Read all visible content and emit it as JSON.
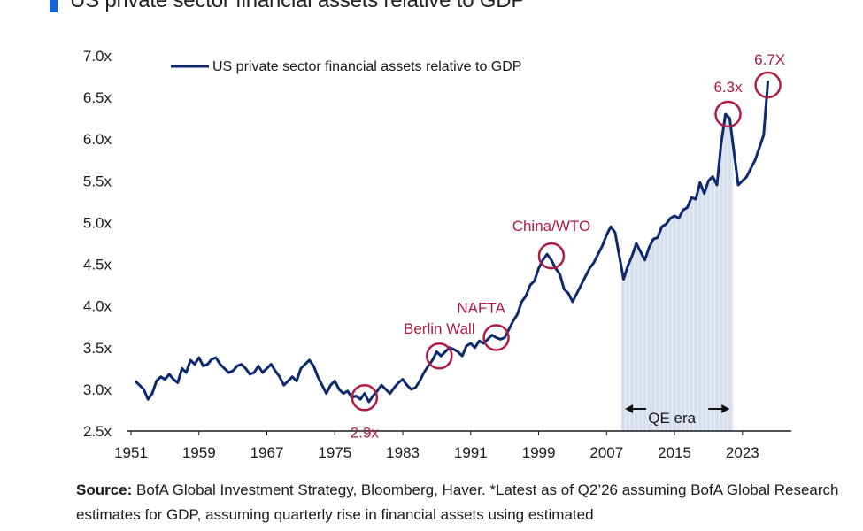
{
  "title": "US private sector financial assets relative to GDP",
  "source_label": "Source:",
  "source_text": "BofA Global Investment Strategy, Bloomberg, Haver. *Latest as of Q2’26 assuming BofA Global Research estimates for GDP, assuming quarterly rise in financial assets using estimated",
  "colors": {
    "line": "#0d2a6e",
    "annotation": "#b11a42",
    "qe_fill": "#c9d3e6",
    "accent": "#1565d8"
  },
  "chart_data": {
    "type": "line",
    "title": "US private sector financial assets relative to GDP",
    "xlabel": "",
    "ylabel": "",
    "xlim": [
      1951,
      2027.5
    ],
    "ylim": [
      2.5,
      7.0
    ],
    "x_ticks": [
      "1951",
      "1959",
      "1967",
      "1975",
      "1983",
      "1991",
      "1999",
      "2007",
      "2015",
      "2023"
    ],
    "x_tick_values": [
      1951,
      1959,
      1967,
      1975,
      1983,
      1991,
      1999,
      2007,
      2015,
      2023
    ],
    "y_ticks": [
      "2.5x",
      "3.0x",
      "3.5x",
      "4.0x",
      "4.5x",
      "5.0x",
      "5.5x",
      "6.0x",
      "6.5x",
      "7.0x"
    ],
    "y_tick_values": [
      2.5,
      3.0,
      3.5,
      4.0,
      4.5,
      5.0,
      5.5,
      6.0,
      6.5,
      7.0
    ],
    "legend": "top-left",
    "grid": false,
    "series": [
      {
        "name": "US private sector financial assets relative to GDP",
        "x": [
          1951.5,
          1952,
          1952.5,
          1953,
          1953.5,
          1954,
          1954.5,
          1955,
          1955.5,
          1956,
          1956.5,
          1957,
          1957.5,
          1958,
          1958.5,
          1959,
          1959.5,
          1960,
          1960.5,
          1961,
          1961.5,
          1962,
          1962.5,
          1963,
          1963.5,
          1964,
          1964.5,
          1965,
          1965.5,
          1966,
          1966.5,
          1967,
          1967.5,
          1968,
          1968.5,
          1969,
          1969.5,
          1970,
          1970.5,
          1971,
          1971.5,
          1972,
          1972.5,
          1973,
          1973.5,
          1974,
          1974.5,
          1975,
          1975.5,
          1976,
          1976.5,
          1977,
          1977.5,
          1978,
          1978.5,
          1979,
          1979.5,
          1980,
          1980.5,
          1981,
          1981.5,
          1982,
          1982.5,
          1983,
          1983.5,
          1984,
          1984.5,
          1985,
          1985.5,
          1986,
          1986.5,
          1987,
          1987.5,
          1988,
          1988.5,
          1989,
          1989.5,
          1990,
          1990.5,
          1991,
          1991.5,
          1992,
          1992.5,
          1993,
          1993.5,
          1994,
          1994.5,
          1995,
          1995.5,
          1996,
          1996.5,
          1997,
          1997.5,
          1998,
          1998.5,
          1999,
          1999.5,
          2000,
          2000.5,
          2001,
          2001.5,
          2002,
          2002.5,
          2003,
          2003.5,
          2004,
          2004.5,
          2005,
          2005.5,
          2006,
          2006.5,
          2007,
          2007.5,
          2008,
          2008.5,
          2009,
          2009.5,
          2010,
          2010.5,
          2011,
          2011.5,
          2012,
          2012.5,
          2013,
          2013.5,
          2014,
          2014.5,
          2015,
          2015.5,
          2016,
          2016.5,
          2017,
          2017.5,
          2018,
          2018.5,
          2019,
          2019.5,
          2020,
          2020.5,
          2021,
          2021.5,
          2022,
          2022.5,
          2023,
          2023.5,
          2024,
          2024.5,
          2025,
          2025.5,
          2026
        ],
        "y": [
          3.1,
          3.05,
          3.0,
          2.88,
          2.95,
          3.1,
          3.15,
          3.12,
          3.18,
          3.12,
          3.08,
          3.25,
          3.2,
          3.35,
          3.3,
          3.38,
          3.28,
          3.3,
          3.36,
          3.38,
          3.3,
          3.25,
          3.2,
          3.22,
          3.28,
          3.3,
          3.25,
          3.18,
          3.2,
          3.28,
          3.2,
          3.25,
          3.3,
          3.22,
          3.15,
          3.05,
          3.1,
          3.15,
          3.1,
          3.25,
          3.3,
          3.35,
          3.28,
          3.15,
          3.05,
          2.95,
          3.05,
          3.1,
          3.0,
          2.95,
          2.98,
          2.9,
          2.92,
          2.88,
          2.95,
          2.85,
          2.92,
          2.98,
          3.05,
          3.0,
          2.95,
          3.02,
          3.08,
          3.12,
          3.05,
          3.0,
          3.02,
          3.1,
          3.2,
          3.28,
          3.35,
          3.45,
          3.4,
          3.45,
          3.5,
          3.48,
          3.45,
          3.4,
          3.52,
          3.55,
          3.5,
          3.58,
          3.55,
          3.6,
          3.65,
          3.62,
          3.6,
          3.62,
          3.72,
          3.82,
          3.9,
          4.05,
          4.12,
          4.25,
          4.3,
          4.45,
          4.55,
          4.62,
          4.55,
          4.45,
          4.38,
          4.2,
          4.15,
          4.05,
          4.15,
          4.25,
          4.35,
          4.45,
          4.52,
          4.62,
          4.72,
          4.85,
          4.95,
          4.88,
          4.6,
          4.32,
          4.48,
          4.6,
          4.75,
          4.65,
          4.55,
          4.7,
          4.8,
          4.82,
          4.95,
          4.98,
          5.05,
          5.08,
          5.05,
          5.15,
          5.18,
          5.3,
          5.28,
          5.48,
          5.35,
          5.5,
          5.55,
          5.45,
          5.95,
          6.3,
          6.25,
          5.85,
          5.45,
          5.5,
          5.55,
          5.65,
          5.75,
          5.9,
          6.05,
          6.7
        ]
      }
    ],
    "annotations": [
      {
        "label": "2.9x",
        "x": 1978.5,
        "y": 2.9
      },
      {
        "label": "Berlin Wall",
        "x": 1987.3,
        "y": 3.4
      },
      {
        "label": "NAFTA",
        "x": 1994,
        "y": 3.62
      },
      {
        "label": "China/WTO",
        "x": 2000.5,
        "y": 4.6
      },
      {
        "label": "6.3x",
        "x": 2021.3,
        "y": 6.3
      },
      {
        "label": "6.7X",
        "x": 2026,
        "y": 6.65
      }
    ],
    "shaded_region": {
      "label": "QE era",
      "x_start": 2008.75,
      "x_end": 2021.9
    }
  }
}
